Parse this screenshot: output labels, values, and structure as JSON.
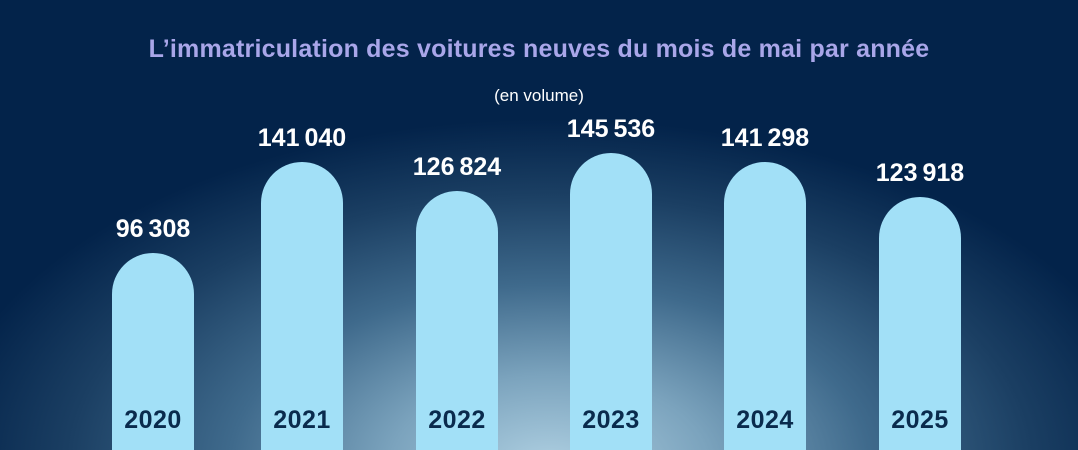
{
  "header": {
    "title": "L’immatriculation des voitures neuves du mois de mai par année",
    "subtitle": "(en volume)"
  },
  "chart_data": {
    "type": "bar",
    "title": "L’immatriculation des voitures neuves du mois de mai par année",
    "subtitle": "(en volume)",
    "categories": [
      "2020",
      "2021",
      "2022",
      "2023",
      "2024",
      "2025"
    ],
    "values": [
      96308,
      141040,
      126824,
      145536,
      141298,
      123918
    ],
    "value_labels": [
      "96 308",
      "141 040",
      "126 824",
      "145 536",
      "141 298",
      "123 918"
    ],
    "xlabel": "",
    "ylabel": "",
    "ylim": [
      0,
      145536
    ],
    "grid": false,
    "legend": false,
    "orientation": "vertical",
    "bar_style": "rounded-top"
  },
  "colors": {
    "background": "#03234a",
    "glow": "#aecfe1",
    "bar": "#a2e0f7",
    "title": "#a9a6e9",
    "subtitle": "#ffffff",
    "value_label": "#ffffff",
    "year_label": "#0a2b4d"
  }
}
